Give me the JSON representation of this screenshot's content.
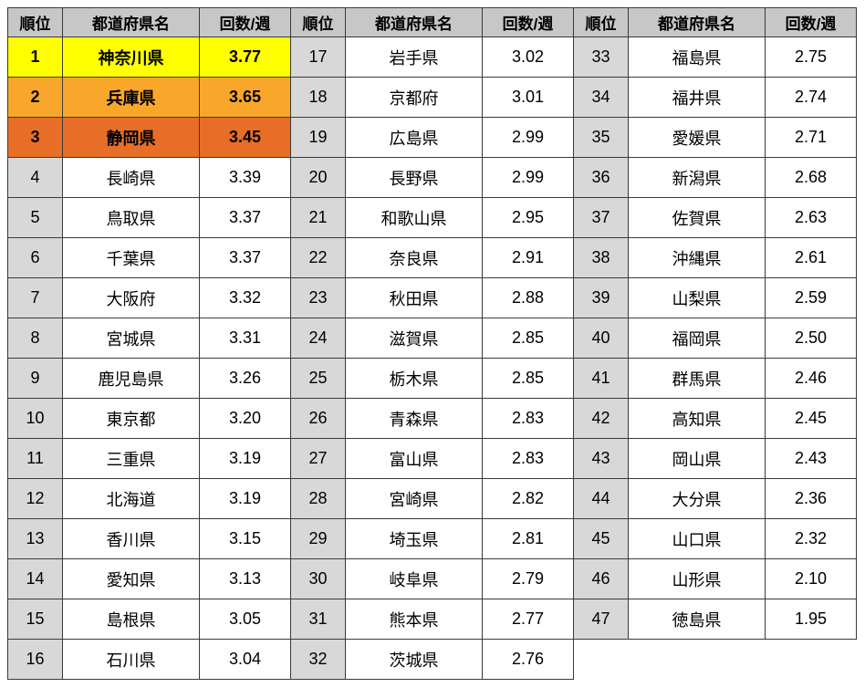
{
  "headers": {
    "rank": "順位",
    "name": "都道府県名",
    "value": "回数/週"
  },
  "highlight_colors": {
    "1": "#ffff00",
    "2": "#f9a72b",
    "3": "#e86e28"
  },
  "columns": [
    {
      "rows": [
        {
          "rank": "1",
          "name": "神奈川県",
          "value": "3.77",
          "hl": "1"
        },
        {
          "rank": "2",
          "name": "兵庫県",
          "value": "3.65",
          "hl": "2"
        },
        {
          "rank": "3",
          "name": "静岡県",
          "value": "3.45",
          "hl": "3"
        },
        {
          "rank": "4",
          "name": "長崎県",
          "value": "3.39"
        },
        {
          "rank": "5",
          "name": "鳥取県",
          "value": "3.37"
        },
        {
          "rank": "6",
          "name": "千葉県",
          "value": "3.37"
        },
        {
          "rank": "7",
          "name": "大阪府",
          "value": "3.32"
        },
        {
          "rank": "8",
          "name": "宮城県",
          "value": "3.31"
        },
        {
          "rank": "9",
          "name": "鹿児島県",
          "value": "3.26"
        },
        {
          "rank": "10",
          "name": "東京都",
          "value": "3.20"
        },
        {
          "rank": "11",
          "name": "三重県",
          "value": "3.19"
        },
        {
          "rank": "12",
          "name": "北海道",
          "value": "3.19"
        },
        {
          "rank": "13",
          "name": "香川県",
          "value": "3.15"
        },
        {
          "rank": "14",
          "name": "愛知県",
          "value": "3.13"
        },
        {
          "rank": "15",
          "name": "島根県",
          "value": "3.05"
        },
        {
          "rank": "16",
          "name": "石川県",
          "value": "3.04"
        }
      ]
    },
    {
      "rows": [
        {
          "rank": "17",
          "name": "岩手県",
          "value": "3.02"
        },
        {
          "rank": "18",
          "name": "京都府",
          "value": "3.01"
        },
        {
          "rank": "19",
          "name": "広島県",
          "value": "2.99"
        },
        {
          "rank": "20",
          "name": "長野県",
          "value": "2.99"
        },
        {
          "rank": "21",
          "name": "和歌山県",
          "value": "2.95"
        },
        {
          "rank": "22",
          "name": "奈良県",
          "value": "2.91"
        },
        {
          "rank": "23",
          "name": "秋田県",
          "value": "2.88"
        },
        {
          "rank": "24",
          "name": "滋賀県",
          "value": "2.85"
        },
        {
          "rank": "25",
          "name": "栃木県",
          "value": "2.85"
        },
        {
          "rank": "26",
          "name": "青森県",
          "value": "2.83"
        },
        {
          "rank": "27",
          "name": "富山県",
          "value": "2.83"
        },
        {
          "rank": "28",
          "name": "宮崎県",
          "value": "2.82"
        },
        {
          "rank": "29",
          "name": "埼玉県",
          "value": "2.81"
        },
        {
          "rank": "30",
          "name": "岐阜県",
          "value": "2.79"
        },
        {
          "rank": "31",
          "name": "熊本県",
          "value": "2.77"
        },
        {
          "rank": "32",
          "name": "茨城県",
          "value": "2.76"
        }
      ]
    },
    {
      "rows": [
        {
          "rank": "33",
          "name": "福島県",
          "value": "2.75"
        },
        {
          "rank": "34",
          "name": "福井県",
          "value": "2.74"
        },
        {
          "rank": "35",
          "name": "愛媛県",
          "value": "2.71"
        },
        {
          "rank": "36",
          "name": "新潟県",
          "value": "2.68"
        },
        {
          "rank": "37",
          "name": "佐賀県",
          "value": "2.63"
        },
        {
          "rank": "38",
          "name": "沖縄県",
          "value": "2.61"
        },
        {
          "rank": "39",
          "name": "山梨県",
          "value": "2.59"
        },
        {
          "rank": "40",
          "name": "福岡県",
          "value": "2.50"
        },
        {
          "rank": "41",
          "name": "群馬県",
          "value": "2.46"
        },
        {
          "rank": "42",
          "name": "高知県",
          "value": "2.45"
        },
        {
          "rank": "43",
          "name": "岡山県",
          "value": "2.43"
        },
        {
          "rank": "44",
          "name": "大分県",
          "value": "2.36"
        },
        {
          "rank": "45",
          "name": "山口県",
          "value": "2.32"
        },
        {
          "rank": "46",
          "name": "山形県",
          "value": "2.10"
        },
        {
          "rank": "47",
          "name": "徳島県",
          "value": "1.95"
        },
        {
          "empty": true
        }
      ]
    }
  ]
}
